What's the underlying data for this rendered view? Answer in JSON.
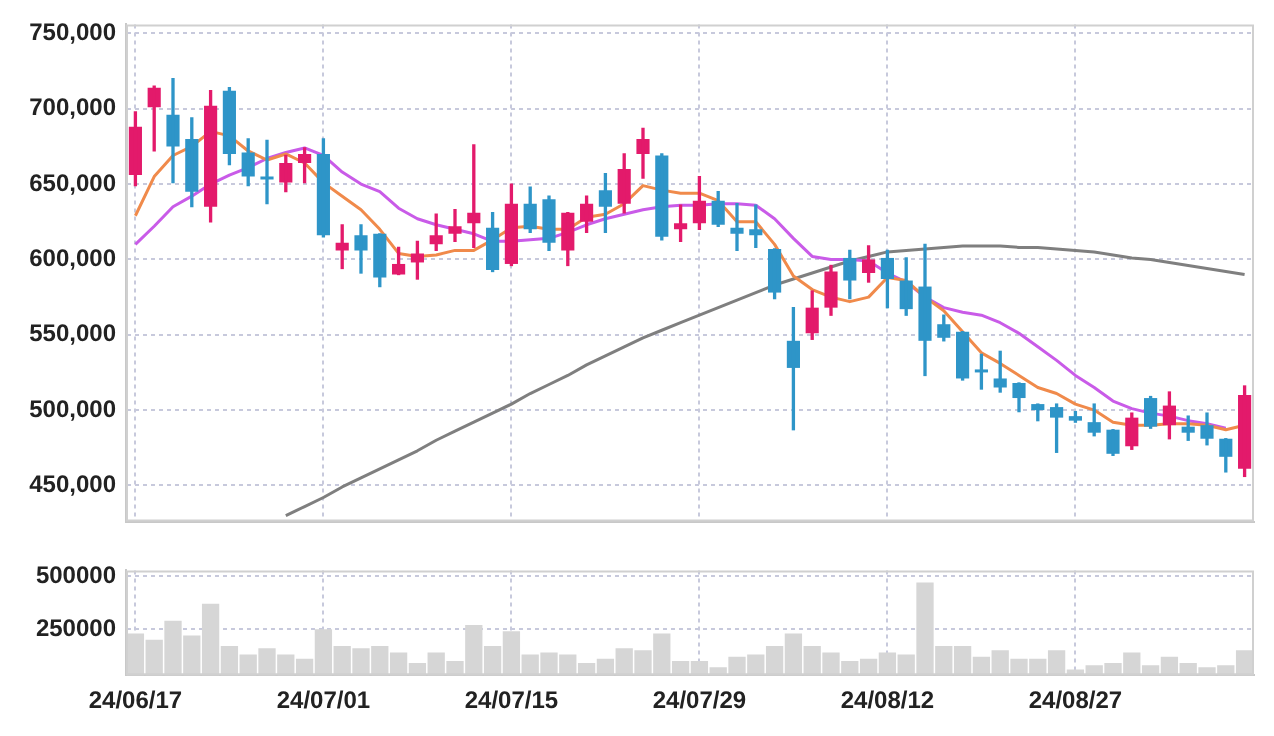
{
  "chart_data": [
    {
      "type": "candlestick",
      "categories": [
        null,
        null,
        null,
        null,
        null,
        null,
        null,
        null,
        null,
        null,
        null,
        null,
        null,
        null,
        null,
        null,
        null,
        null,
        null,
        null,
        null,
        null,
        null,
        null,
        null,
        null,
        null,
        null,
        null,
        null,
        null,
        null,
        null,
        null,
        null,
        null,
        null,
        null,
        null,
        null,
        null,
        null,
        null,
        null,
        null,
        null,
        null,
        null,
        null,
        null,
        null,
        null,
        null,
        null,
        null,
        null,
        null,
        null,
        null,
        null
      ],
      "ohlc": [
        [
          656000,
          698000,
          649000,
          688000
        ],
        [
          701000,
          715000,
          672000,
          714000
        ],
        [
          696000,
          720000,
          651000,
          675000
        ],
        [
          680000,
          694000,
          635000,
          645000
        ],
        [
          635000,
          712000,
          625000,
          702000
        ],
        [
          712000,
          714000,
          663000,
          670000
        ],
        [
          671000,
          680000,
          649000,
          655000
        ],
        [
          655000,
          679000,
          637000,
          653000
        ],
        [
          651000,
          669000,
          645000,
          664000
        ],
        [
          664000,
          674000,
          651000,
          670000
        ],
        [
          670000,
          680000,
          615000,
          616000
        ],
        [
          606000,
          623000,
          594000,
          611000
        ],
        [
          616000,
          623000,
          591000,
          606000
        ],
        [
          617000,
          617000,
          582000,
          588000
        ],
        [
          590000,
          608000,
          590000,
          597000
        ],
        [
          598000,
          612000,
          587000,
          604000
        ],
        [
          610000,
          630000,
          606000,
          616000
        ],
        [
          617000,
          633000,
          612000,
          622000
        ],
        [
          624000,
          676000,
          608000,
          631000
        ],
        [
          621000,
          631000,
          592000,
          593000
        ],
        [
          597000,
          650000,
          596000,
          637000
        ],
        [
          637000,
          648000,
          618000,
          620000
        ],
        [
          640000,
          642000,
          606000,
          611000
        ],
        [
          606000,
          631000,
          596000,
          631000
        ],
        [
          625000,
          642000,
          618000,
          637000
        ],
        [
          646000,
          657000,
          618000,
          635000
        ],
        [
          637000,
          670000,
          631000,
          660000
        ],
        [
          670000,
          687000,
          654000,
          680000
        ],
        [
          669000,
          670000,
          613000,
          615000
        ],
        [
          620000,
          636000,
          612000,
          624000
        ],
        [
          624000,
          655000,
          620000,
          639000
        ],
        [
          639000,
          645000,
          622000,
          623000
        ],
        [
          621000,
          637000,
          606000,
          617000
        ],
        [
          620000,
          636000,
          608000,
          616000
        ],
        [
          607000,
          607000,
          574000,
          578000
        ],
        [
          546000,
          568000,
          487000,
          528000
        ],
        [
          551000,
          579000,
          547000,
          568000
        ],
        [
          568000,
          596000,
          563000,
          592000
        ],
        [
          601000,
          606000,
          574000,
          586000
        ],
        [
          591000,
          609000,
          585000,
          600000
        ],
        [
          601000,
          606000,
          568000,
          587000
        ],
        [
          586000,
          601000,
          563000,
          567000
        ],
        [
          582000,
          610000,
          523000,
          546000
        ],
        [
          557000,
          563000,
          546000,
          548000
        ],
        [
          552000,
          552000,
          520000,
          521000
        ],
        [
          527000,
          537000,
          514000,
          525000
        ],
        [
          521000,
          539000,
          512000,
          515000
        ],
        [
          518000,
          518000,
          499000,
          508000
        ],
        [
          504000,
          504000,
          493000,
          500000
        ],
        [
          502000,
          504000,
          472000,
          495000
        ],
        [
          496000,
          499000,
          492000,
          493000
        ],
        [
          492000,
          504000,
          483000,
          485000
        ],
        [
          487000,
          487000,
          470000,
          471000
        ],
        [
          476000,
          498000,
          474000,
          495000
        ],
        [
          508000,
          509000,
          488000,
          489000
        ],
        [
          490000,
          512000,
          481000,
          503000
        ],
        [
          489000,
          496000,
          480000,
          485000
        ],
        [
          490000,
          498000,
          477000,
          481000
        ],
        [
          481000,
          481000,
          459000,
          469000
        ],
        [
          461000,
          516000,
          456000,
          510000
        ]
      ],
      "colors": [
        "#e31a6b",
        "#e31a6b",
        "#2e95c8",
        "#2e95c8",
        "#e31a6b",
        "#2e95c8",
        "#2e95c8",
        "#2e95c8",
        "#e31a6b",
        "#e31a6b",
        "#2e95c8",
        "#e31a6b",
        "#2e95c8",
        "#2e95c8",
        "#e31a6b",
        "#e31a6b",
        "#e31a6b",
        "#e31a6b",
        "#e31a6b",
        "#2e95c8",
        "#e31a6b",
        "#2e95c8",
        "#2e95c8",
        "#e31a6b",
        "#e31a6b",
        "#2e95c8",
        "#e31a6b",
        "#e31a6b",
        "#2e95c8",
        "#e31a6b",
        "#e31a6b",
        "#2e95c8",
        "#2e95c8",
        "#2e95c8",
        "#2e95c8",
        "#2e95c8",
        "#e31a6b",
        "#e31a6b",
        "#2e95c8",
        "#e31a6b",
        "#2e95c8",
        "#2e95c8",
        "#2e95c8",
        "#2e95c8",
        "#2e95c8",
        "#2e95c8",
        "#2e95c8",
        "#2e95c8",
        "#2e95c8",
        "#2e95c8",
        "#2e95c8",
        "#2e95c8",
        "#2e95c8",
        "#e31a6b",
        "#2e95c8",
        "#e31a6b",
        "#2e95c8",
        "#2e95c8",
        "#2e95c8",
        "#e31a6b"
      ],
      "series": [
        {
          "type": "line",
          "color": "#f08a4b",
          "values": [
            629000,
            655000,
            669000,
            675000,
            685000,
            682000,
            672000,
            666000,
            670000,
            664000,
            651000,
            642000,
            633000,
            620000,
            604000,
            602000,
            603000,
            606000,
            606000,
            613000,
            621000,
            622000,
            620000,
            620000,
            628000,
            630000,
            637000,
            649000,
            646000,
            644000,
            644000,
            639000,
            625000,
            625000,
            610000,
            589000,
            580000,
            575000,
            572000,
            575000,
            588000,
            586000,
            575000,
            566000,
            552000,
            538000,
            531000,
            523000,
            515000,
            511000,
            504000,
            500000,
            492000,
            490000,
            490000,
            491000,
            491000,
            490000,
            487000,
            490000
          ]
        },
        {
          "type": "line",
          "color": "#c95be8",
          "values": [
            610000,
            622000,
            635000,
            642000,
            650000,
            656000,
            661000,
            667000,
            671000,
            674000,
            669000,
            658000,
            650000,
            645000,
            634000,
            627000,
            623000,
            620000,
            617000,
            612000,
            612000,
            613000,
            614000,
            618000,
            623000,
            627000,
            630000,
            633000,
            635000,
            636000,
            636000,
            637000,
            637000,
            636000,
            627000,
            614000,
            602000,
            600000,
            600000,
            599000,
            591000,
            585000,
            575000,
            568000,
            565000,
            563000,
            558000,
            551000,
            542000,
            533000,
            523000,
            515000,
            506000,
            501000,
            498000,
            496000,
            493000,
            491000,
            488000,
            null
          ]
        },
        {
          "type": "line",
          "color": "#7f7f7f",
          "values": [
            null,
            null,
            null,
            null,
            null,
            null,
            null,
            null,
            430000,
            436000,
            442000,
            449000,
            455000,
            461000,
            467000,
            473000,
            480000,
            486000,
            492000,
            498000,
            504000,
            511000,
            517000,
            523000,
            530000,
            536000,
            542000,
            548000,
            553000,
            558000,
            563000,
            568000,
            573000,
            578000,
            583000,
            587000,
            591000,
            595000,
            599000,
            602000,
            605000,
            606000,
            607000,
            608000,
            609000,
            609000,
            609000,
            608000,
            608000,
            607000,
            606000,
            605000,
            603000,
            601000,
            600000,
            598000,
            596000,
            594000,
            592000,
            590000
          ]
        }
      ],
      "ylim": [
        426000,
        756000
      ],
      "yticks": [
        {
          "value": 450000,
          "label": "450,000"
        },
        {
          "value": 500000,
          "label": "500,000"
        },
        {
          "value": 550000,
          "label": "550,000"
        },
        {
          "value": 600000,
          "label": "600,000"
        },
        {
          "value": 650000,
          "label": "650,000"
        },
        {
          "value": 700000,
          "label": "700,000"
        },
        {
          "value": 750000,
          "label": "750,000"
        }
      ],
      "grid": true,
      "tick_labels": "y",
      "marker": "none"
    },
    {
      "type": "bar",
      "categories": [
        "24/06/17",
        null,
        null,
        null,
        null,
        null,
        null,
        null,
        null,
        null,
        "24/07/01",
        null,
        null,
        null,
        null,
        null,
        null,
        null,
        null,
        null,
        "24/07/15",
        null,
        null,
        null,
        null,
        null,
        null,
        null,
        null,
        null,
        "24/07/29",
        null,
        null,
        null,
        null,
        null,
        null,
        null,
        null,
        null,
        "24/08/12",
        null,
        null,
        null,
        null,
        null,
        null,
        null,
        null,
        null,
        "24/08/27",
        null,
        null,
        null,
        null,
        null,
        null,
        null,
        null,
        null
      ],
      "values": [
        230000,
        200000,
        290000,
        220000,
        370000,
        170000,
        130000,
        160000,
        130000,
        110000,
        250000,
        170000,
        160000,
        170000,
        140000,
        90000,
        140000,
        100000,
        270000,
        170000,
        240000,
        130000,
        140000,
        130000,
        90000,
        110000,
        160000,
        150000,
        230000,
        100000,
        100000,
        70000,
        120000,
        130000,
        170000,
        230000,
        170000,
        140000,
        100000,
        110000,
        140000,
        130000,
        470000,
        170000,
        170000,
        120000,
        150000,
        110000,
        110000,
        150000,
        60000,
        80000,
        90000,
        140000,
        80000,
        120000,
        90000,
        70000,
        80000,
        150000
      ],
      "color": "#d6d6d6",
      "ylim": [
        32500,
        527500
      ],
      "yticks": [
        250000,
        500000
      ],
      "grid": true
    }
  ]
}
